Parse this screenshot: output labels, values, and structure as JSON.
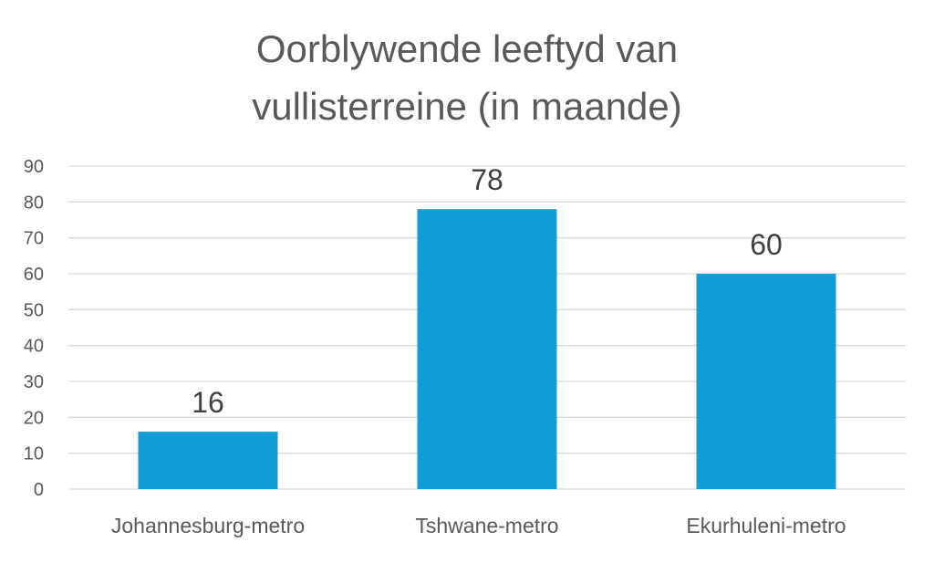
{
  "chart_data": {
    "type": "bar",
    "title_lines": [
      "Oorblywende leeftyd van",
      "vullisterreine (in maande)"
    ],
    "categories": [
      "Johannesburg-metro",
      "Tshwane-metro",
      "Ekurhuleni-metro"
    ],
    "values": [
      16,
      78,
      60
    ],
    "data_labels": [
      "16",
      "78",
      "60"
    ],
    "ylim": [
      0,
      90
    ],
    "yticks": [
      "0",
      "10",
      "20",
      "30",
      "40",
      "50",
      "60",
      "70",
      "80",
      "90"
    ],
    "xlabel": "",
    "ylabel": "",
    "grid": true,
    "legend": "none",
    "bar_color": "#139CD6"
  }
}
